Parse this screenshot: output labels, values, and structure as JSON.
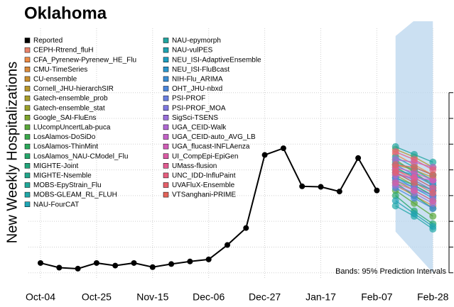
{
  "chart_data": {
    "type": "line",
    "title": "Oklahoma",
    "y_label": "New Weekly Hospitalizations",
    "annotation": "Bands: 95% Prediction Intervals",
    "categories": [
      "Oct-04",
      null,
      null,
      "Oct-25",
      null,
      null,
      "Nov-15",
      null,
      null,
      "Dec-06",
      null,
      null,
      "Dec-27",
      null,
      null,
      "Jan-17",
      null,
      null,
      "Feb-07",
      null,
      null,
      "Feb-28"
    ],
    "ylim": [
      -10,
      475
    ],
    "yticks": [
      0,
      50,
      100,
      150,
      200,
      250,
      300,
      350
    ],
    "grid": true,
    "band": {
      "color": "#b9d6ee",
      "lower": [
        null,
        null,
        null,
        null,
        null,
        null,
        null,
        null,
        null,
        null,
        null,
        null,
        null,
        null,
        null,
        null,
        null,
        null,
        null,
        80,
        40,
        0
      ],
      "upper": [
        null,
        null,
        null,
        null,
        null,
        null,
        null,
        null,
        null,
        null,
        null,
        null,
        null,
        null,
        null,
        null,
        null,
        null,
        null,
        460,
        490,
        520
      ]
    },
    "series": [
      {
        "name": "Reported",
        "color": "#000000",
        "values": [
          19,
          10,
          8,
          19,
          14,
          19,
          11,
          17,
          22,
          26,
          54,
          87,
          229,
          242,
          168,
          167,
          158,
          223,
          160,
          null,
          null,
          null
        ]
      },
      {
        "name": "CEPH-Rtrend_fluH",
        "color": "#e8836b",
        "values": [
          null,
          null,
          null,
          null,
          null,
          null,
          null,
          null,
          null,
          null,
          null,
          null,
          null,
          null,
          null,
          null,
          null,
          null,
          null,
          200,
          180,
          160
        ]
      },
      {
        "name": "CFA_Pyrenew-Pyrenew_HE_Flu",
        "color": "#ec8a45",
        "values": [
          null,
          null,
          null,
          null,
          null,
          null,
          null,
          null,
          null,
          null,
          null,
          null,
          null,
          null,
          null,
          null,
          null,
          null,
          null,
          230,
          210,
          190
        ]
      },
      {
        "name": "CMU-TimeSeries",
        "color": "#d9893a",
        "values": [
          null,
          null,
          null,
          null,
          null,
          null,
          null,
          null,
          null,
          null,
          null,
          null,
          null,
          null,
          null,
          null,
          null,
          null,
          null,
          170,
          150,
          130
        ]
      },
      {
        "name": "CU-ensemble",
        "color": "#c98e2e",
        "values": [
          null,
          null,
          null,
          null,
          null,
          null,
          null,
          null,
          null,
          null,
          null,
          null,
          null,
          null,
          null,
          null,
          null,
          null,
          null,
          210,
          200,
          185
        ]
      },
      {
        "name": "Cornell_JHU-hierarchSIR",
        "color": "#b8962a",
        "values": [
          null,
          null,
          null,
          null,
          null,
          null,
          null,
          null,
          null,
          null,
          null,
          null,
          null,
          null,
          null,
          null,
          null,
          null,
          null,
          240,
          225,
          205
        ]
      },
      {
        "name": "Gatech-ensemble_prob",
        "color": "#a89c2a",
        "values": [
          null,
          null,
          null,
          null,
          null,
          null,
          null,
          null,
          null,
          null,
          null,
          null,
          null,
          null,
          null,
          null,
          null,
          null,
          null,
          190,
          170,
          150
        ]
      },
      {
        "name": "Gatech-ensemble_stat",
        "color": "#9aa02a",
        "values": [
          null,
          null,
          null,
          null,
          null,
          null,
          null,
          null,
          null,
          null,
          null,
          null,
          null,
          null,
          null,
          null,
          null,
          null,
          null,
          180,
          160,
          140
        ]
      },
      {
        "name": "Google_SAI-FluEns",
        "color": "#7fa52c",
        "values": [
          null,
          null,
          null,
          null,
          null,
          null,
          null,
          null,
          null,
          null,
          null,
          null,
          null,
          null,
          null,
          null,
          null,
          null,
          null,
          220,
          195,
          170
        ]
      },
      {
        "name": "LUcompUncertLab-puca",
        "color": "#5aa83a",
        "values": [
          null,
          null,
          null,
          null,
          null,
          null,
          null,
          null,
          null,
          null,
          null,
          null,
          null,
          null,
          null,
          null,
          null,
          null,
          null,
          160,
          135,
          110
        ]
      },
      {
        "name": "LosAlamos-DoSiDo",
        "color": "#3aa84a",
        "values": [
          null,
          null,
          null,
          null,
          null,
          null,
          null,
          null,
          null,
          null,
          null,
          null,
          null,
          null,
          null,
          null,
          null,
          null,
          null,
          205,
          185,
          165
        ]
      },
      {
        "name": "LosAlamos-ThinMint",
        "color": "#2ba85a",
        "values": [
          null,
          null,
          null,
          null,
          null,
          null,
          null,
          null,
          null,
          null,
          null,
          null,
          null,
          null,
          null,
          null,
          null,
          null,
          null,
          175,
          150,
          125
        ]
      },
      {
        "name": "LosAlamos_NAU-CModel_Flu",
        "color": "#25a66a",
        "values": [
          null,
          null,
          null,
          null,
          null,
          null,
          null,
          null,
          null,
          null,
          null,
          null,
          null,
          null,
          null,
          null,
          null,
          null,
          null,
          150,
          120,
          95
        ]
      },
      {
        "name": "MIGHTE-Joint",
        "color": "#22a57a",
        "values": [
          null,
          null,
          null,
          null,
          null,
          null,
          null,
          null,
          null,
          null,
          null,
          null,
          null,
          null,
          null,
          null,
          null,
          null,
          null,
          195,
          175,
          160
        ]
      },
      {
        "name": "MIGHTE-Nsemble",
        "color": "#22a68a",
        "values": [
          null,
          null,
          null,
          null,
          null,
          null,
          null,
          null,
          null,
          null,
          null,
          null,
          null,
          null,
          null,
          null,
          null,
          null,
          null,
          185,
          170,
          150
        ]
      },
      {
        "name": "MOBS-EpyStrain_Flu",
        "color": "#20a899",
        "values": [
          null,
          null,
          null,
          null,
          null,
          null,
          null,
          null,
          null,
          null,
          null,
          null,
          null,
          null,
          null,
          null,
          null,
          null,
          null,
          215,
          200,
          180
        ]
      },
      {
        "name": "MOBS-GLEAM_RL_FLUH",
        "color": "#20a8a8",
        "values": [
          null,
          null,
          null,
          null,
          null,
          null,
          null,
          null,
          null,
          null,
          null,
          null,
          null,
          null,
          null,
          null,
          null,
          null,
          null,
          130,
          110,
          85
        ]
      },
      {
        "name": "NAU-FourCAT",
        "color": "#1fa5b5",
        "values": [
          null,
          null,
          null,
          null,
          null,
          null,
          null,
          null,
          null,
          null,
          null,
          null,
          null,
          null,
          null,
          null,
          null,
          null,
          null,
          225,
          205,
          190
        ]
      },
      {
        "name": "NAU-epymorph",
        "color": "#20a5a0",
        "values": [
          null,
          null,
          null,
          null,
          null,
          null,
          null,
          null,
          null,
          null,
          null,
          null,
          null,
          null,
          null,
          null,
          null,
          null,
          null,
          245,
          230,
          215
        ]
      },
      {
        "name": "NAU-vulPES",
        "color": "#1fa2b0",
        "values": [
          null,
          null,
          null,
          null,
          null,
          null,
          null,
          null,
          null,
          null,
          null,
          null,
          null,
          null,
          null,
          null,
          null,
          null,
          null,
          140,
          115,
          90
        ]
      },
      {
        "name": "NEU_ISI-AdaptiveEnsemble",
        "color": "#1e9ec0",
        "values": [
          null,
          null,
          null,
          null,
          null,
          null,
          null,
          null,
          null,
          null,
          null,
          null,
          null,
          null,
          null,
          null,
          null,
          null,
          null,
          200,
          190,
          175
        ]
      },
      {
        "name": "NEU_ISI-FluBcast",
        "color": "#2a96cc",
        "values": [
          null,
          null,
          null,
          null,
          null,
          null,
          null,
          null,
          null,
          null,
          null,
          null,
          null,
          null,
          null,
          null,
          null,
          null,
          null,
          185,
          165,
          145
        ]
      },
      {
        "name": "NIH-Flu_ARIMA",
        "color": "#3a8ed4",
        "values": [
          null,
          null,
          null,
          null,
          null,
          null,
          null,
          null,
          null,
          null,
          null,
          null,
          null,
          null,
          null,
          null,
          null,
          null,
          null,
          210,
          190,
          170
        ]
      },
      {
        "name": "OHT_JHU-nbxd",
        "color": "#4a85dc",
        "values": [
          null,
          null,
          null,
          null,
          null,
          null,
          null,
          null,
          null,
          null,
          null,
          null,
          null,
          null,
          null,
          null,
          null,
          null,
          null,
          165,
          145,
          125
        ]
      },
      {
        "name": "PSI-PROF",
        "color": "#6a7fe0",
        "values": [
          null,
          null,
          null,
          null,
          null,
          null,
          null,
          null,
          null,
          null,
          null,
          null,
          null,
          null,
          null,
          null,
          null,
          null,
          null,
          195,
          180,
          160
        ]
      },
      {
        "name": "PSI-PROF_MOA",
        "color": "#7f78e0",
        "values": [
          null,
          null,
          null,
          null,
          null,
          null,
          null,
          null,
          null,
          null,
          null,
          null,
          null,
          null,
          null,
          null,
          null,
          null,
          null,
          180,
          165,
          150
        ]
      },
      {
        "name": "SigSci-TSENS",
        "color": "#9a70dc",
        "values": [
          null,
          null,
          null,
          null,
          null,
          null,
          null,
          null,
          null,
          null,
          null,
          null,
          null,
          null,
          null,
          null,
          null,
          null,
          null,
          170,
          155,
          135
        ]
      },
      {
        "name": "UGA_CEID-Walk",
        "color": "#b068d4",
        "values": [
          null,
          null,
          null,
          null,
          null,
          null,
          null,
          null,
          null,
          null,
          null,
          null,
          null,
          null,
          null,
          null,
          null,
          null,
          null,
          220,
          215,
          205
        ]
      },
      {
        "name": "UGA_CEID-auto_AVG_LB",
        "color": "#c462c8",
        "values": [
          null,
          null,
          null,
          null,
          null,
          null,
          null,
          null,
          null,
          null,
          null,
          null,
          null,
          null,
          null,
          null,
          null,
          null,
          null,
          190,
          185,
          180
        ]
      },
      {
        "name": "UGA_flucast-INFLAenza",
        "color": "#d25eb8",
        "values": [
          null,
          null,
          null,
          null,
          null,
          null,
          null,
          null,
          null,
          null,
          null,
          null,
          null,
          null,
          null,
          null,
          null,
          null,
          null,
          205,
          195,
          180
        ]
      },
      {
        "name": "UI_CompEpi-EpiGen",
        "color": "#dc5ca6",
        "values": [
          null,
          null,
          null,
          null,
          null,
          null,
          null,
          null,
          null,
          null,
          null,
          null,
          null,
          null,
          null,
          null,
          null,
          null,
          null,
          175,
          160,
          140
        ]
      },
      {
        "name": "UMass-flusion",
        "color": "#e25c92",
        "values": [
          null,
          null,
          null,
          null,
          null,
          null,
          null,
          null,
          null,
          null,
          null,
          null,
          null,
          null,
          null,
          null,
          null,
          null,
          null,
          200,
          185,
          165
        ]
      },
      {
        "name": "UNC_IDD-InfluPaint",
        "color": "#e65e7e",
        "values": [
          null,
          null,
          null,
          null,
          null,
          null,
          null,
          null,
          null,
          null,
          null,
          null,
          null,
          null,
          null,
          null,
          null,
          null,
          null,
          235,
          220,
          200
        ]
      },
      {
        "name": "UVAFluX-Ensemble",
        "color": "#e6606a",
        "values": [
          null,
          null,
          null,
          null,
          null,
          null,
          null,
          null,
          null,
          null,
          null,
          null,
          null,
          null,
          null,
          null,
          null,
          null,
          null,
          195,
          175,
          155
        ]
      },
      {
        "name": "VTSanghani-PRIME",
        "color": "#e4645a",
        "values": [
          null,
          null,
          null,
          null,
          null,
          null,
          null,
          null,
          null,
          null,
          null,
          null,
          null,
          null,
          null,
          null,
          null,
          null,
          null,
          210,
          205,
          190
        ]
      }
    ]
  }
}
